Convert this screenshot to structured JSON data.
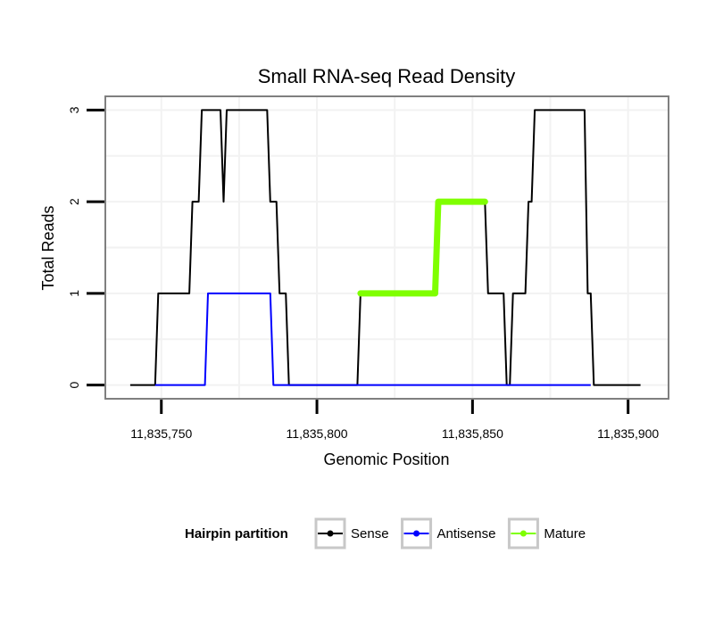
{
  "chart_data": {
    "type": "line",
    "title": "Small RNA-seq Read Density",
    "xlabel": "Genomic Position",
    "ylabel": "Total Reads",
    "xlim": [
      11835732,
      11835913
    ],
    "ylim": [
      -0.15,
      3.15
    ],
    "x_ticks": [
      11835750,
      11835800,
      11835850,
      11835900
    ],
    "x_tick_labels": [
      "11,835,750",
      "11,835,800",
      "11,835,850",
      "11,835,900"
    ],
    "y_ticks": [
      0,
      1,
      2,
      3
    ],
    "y_tick_labels": [
      "0",
      "1",
      "2",
      "3"
    ],
    "grid": true,
    "legend": {
      "title": "Hairpin partition",
      "position": "bottom"
    },
    "series": [
      {
        "name": "Sense",
        "color": "#000000",
        "style": "thin",
        "points": [
          [
            11835740,
            0
          ],
          [
            11835748,
            0
          ],
          [
            11835749,
            1
          ],
          [
            11835759,
            1
          ],
          [
            11835760,
            2
          ],
          [
            11835762,
            2
          ],
          [
            11835763,
            3
          ],
          [
            11835769,
            3
          ],
          [
            11835770,
            2
          ],
          [
            11835771,
            3
          ],
          [
            11835784,
            3
          ],
          [
            11835785,
            2
          ],
          [
            11835787,
            2
          ],
          [
            11835788,
            1
          ],
          [
            11835790,
            1
          ],
          [
            11835791,
            0
          ],
          [
            11835813,
            0
          ],
          [
            11835814,
            1
          ],
          [
            11835838,
            1
          ],
          [
            11835839,
            2
          ],
          [
            11835854,
            2
          ],
          [
            11835855,
            1
          ],
          [
            11835860,
            1
          ],
          [
            11835861,
            0
          ],
          [
            11835862,
            0
          ],
          [
            11835863,
            1
          ],
          [
            11835867,
            1
          ],
          [
            11835868,
            2
          ],
          [
            11835869,
            2
          ],
          [
            11835870,
            3
          ],
          [
            11835886,
            3
          ],
          [
            11835887,
            1
          ],
          [
            11835888,
            1
          ],
          [
            11835889,
            0
          ],
          [
            11835904,
            0
          ]
        ]
      },
      {
        "name": "Antisense",
        "color": "#0000ff",
        "style": "thin",
        "points": [
          [
            11835748,
            0
          ],
          [
            11835764,
            0
          ],
          [
            11835765,
            1
          ],
          [
            11835785,
            1
          ],
          [
            11835786,
            0
          ],
          [
            11835888,
            0
          ]
        ]
      },
      {
        "name": "Mature",
        "color": "#7fff00",
        "style": "thick",
        "points": [
          [
            11835814,
            1
          ],
          [
            11835838,
            1
          ],
          [
            11835839,
            2
          ],
          [
            11835854,
            2
          ]
        ]
      }
    ]
  }
}
